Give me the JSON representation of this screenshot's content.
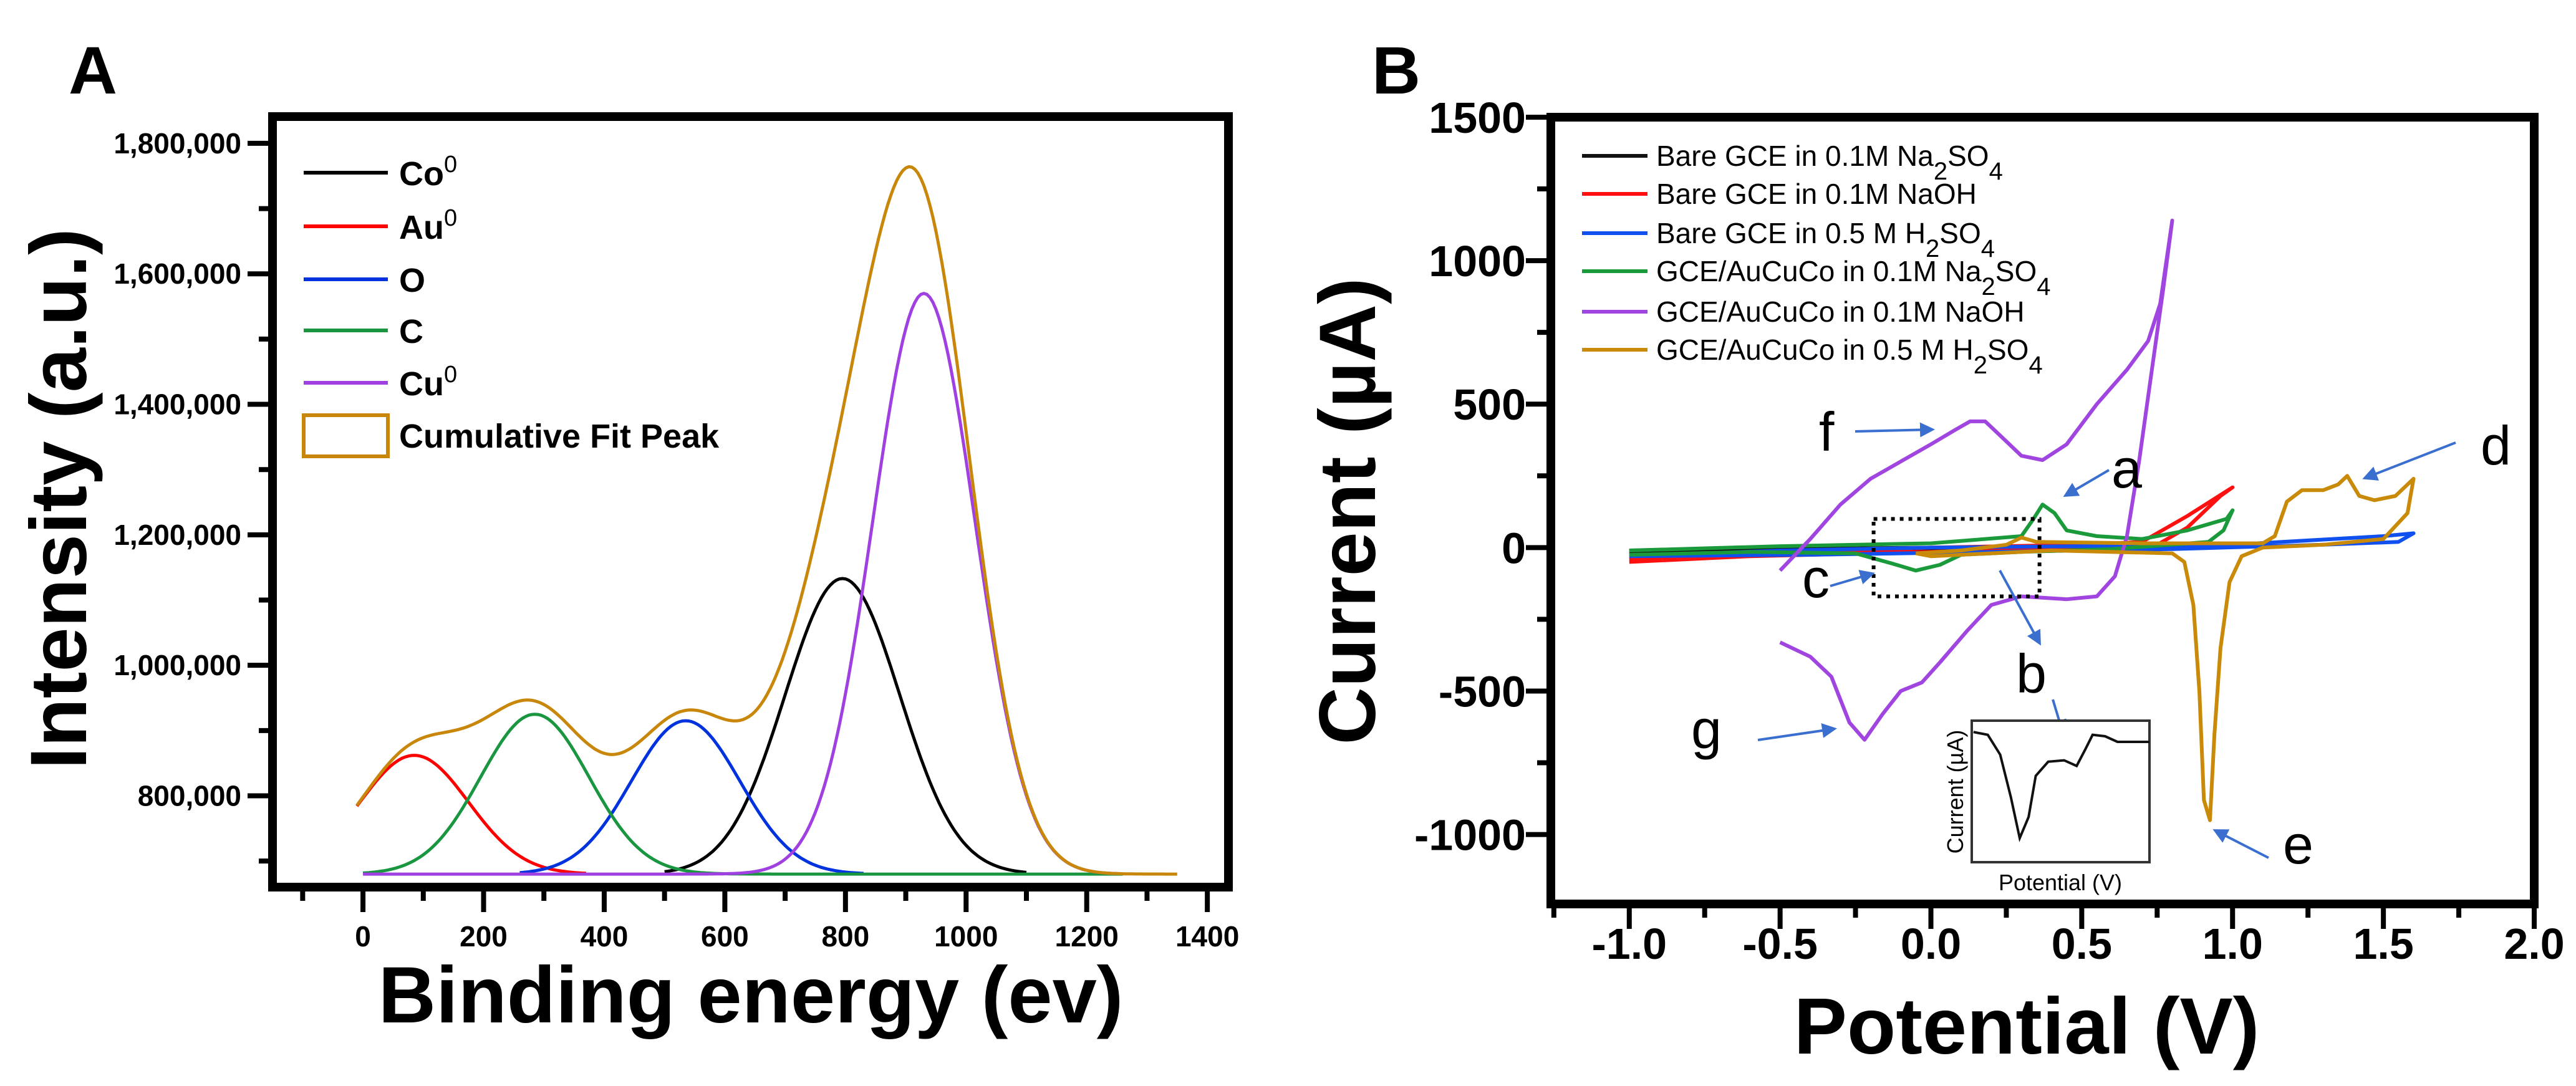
{
  "chart_data": [
    {
      "panel": "A",
      "type": "line",
      "xlabel": "Binding energy (ev)",
      "ylabel": "Intensity (a.u.)",
      "xlim": [
        -150,
        1435
      ],
      "ylim": [
        660000,
        1841000
      ],
      "xticks": [
        0,
        200,
        400,
        600,
        800,
        1000,
        1200,
        1400
      ],
      "xtick_labels": [
        "0",
        "200",
        "400",
        "600",
        "800",
        "1000",
        "1200",
        "1400"
      ],
      "yticks": [
        800000,
        1000000,
        1200000,
        1400000,
        1600000,
        1800000
      ],
      "ytick_labels": [
        "800,000",
        "1,000,000",
        "1,200,000",
        "1,400,000",
        "1,600,000",
        "1,800,000"
      ],
      "grid": false,
      "legend_position": "top-left",
      "baseline": 680000,
      "series": [
        {
          "name": "Co",
          "sup": "0",
          "color": "#000000",
          "center": 795,
          "peak": 1133000,
          "sigma": 95,
          "range": [
            500,
            1100
          ]
        },
        {
          "name": "Au",
          "sup": "0",
          "color": "#ff0000",
          "center": 85,
          "peak": 862000,
          "sigma": 90,
          "range": [
            -10,
            370
          ]
        },
        {
          "name": "O",
          "sup": "",
          "color": "#0033dd",
          "center": 535,
          "peak": 915000,
          "sigma": 90,
          "range": [
            260,
            830
          ]
        },
        {
          "name": "C",
          "sup": "",
          "color": "#1a9641",
          "center": 285,
          "peak": 925000,
          "sigma": 90,
          "range": [
            0,
            1260
          ]
        },
        {
          "name": "Cu",
          "sup": "0",
          "color": "#a040e0",
          "center": 930,
          "peak": 1570000,
          "sigma": 85,
          "range": [
            0,
            1250
          ]
        },
        {
          "name": "Cumulative Fit Peak",
          "sup": "",
          "color": "#c8870a",
          "cumulative": true,
          "range": [
            -10,
            1350
          ]
        }
      ]
    },
    {
      "panel": "B",
      "type": "line",
      "xlabel": "Potential (V)",
      "ylabel": "Current (µA)",
      "xlim": [
        -1.26,
        2.0
      ],
      "ylim": [
        -1242,
        1500
      ],
      "xticks": [
        -1.0,
        -0.5,
        0.0,
        0.5,
        1.0,
        1.5,
        2.0
      ],
      "xtick_labels": [
        "-1.0",
        "-0.5",
        "0.0",
        "0.5",
        "1.0",
        "1.5",
        "2.0"
      ],
      "yticks": [
        -1000,
        -500,
        0,
        500,
        1000,
        1500
      ],
      "ytick_labels": [
        "-1000",
        "-500",
        "0",
        "500",
        "1000",
        "1500"
      ],
      "grid": false,
      "legend_position": "top-left",
      "series": [
        {
          "name": "Bare GCE in 0.1M Na2SO4",
          "color": "#111111",
          "points": [
            [
              -1.0,
              -10
            ],
            [
              -0.5,
              -5
            ],
            [
              0.0,
              0
            ],
            [
              0.5,
              5
            ],
            [
              1.0,
              10
            ],
            [
              0.9,
              0
            ],
            [
              0.4,
              -5
            ],
            [
              -0.2,
              -10
            ],
            [
              -1.0,
              -15
            ]
          ]
        },
        {
          "name": "Bare GCE in 0.1M NaOH",
          "color": "#ff1010",
          "points": [
            [
              -1.0,
              -40
            ],
            [
              -0.5,
              -25
            ],
            [
              0.0,
              0
            ],
            [
              0.5,
              10
            ],
            [
              0.7,
              20
            ],
            [
              0.85,
              110
            ],
            [
              1.0,
              210
            ],
            [
              0.96,
              180
            ],
            [
              0.85,
              70
            ],
            [
              0.75,
              10
            ],
            [
              0.4,
              0
            ],
            [
              0.0,
              -15
            ],
            [
              -0.6,
              -30
            ],
            [
              -1.0,
              -50
            ]
          ]
        },
        {
          "name": "Bare GCE in 0.5 M H2SO4",
          "color": "#1050ee",
          "points": [
            [
              -1.0,
              -30
            ],
            [
              -0.5,
              -10
            ],
            [
              0.0,
              0
            ],
            [
              0.5,
              5
            ],
            [
              1.0,
              10
            ],
            [
              1.5,
              40
            ],
            [
              1.6,
              50
            ],
            [
              1.55,
              20
            ],
            [
              1.3,
              10
            ],
            [
              0.8,
              -5
            ],
            [
              0.2,
              -15
            ],
            [
              -0.4,
              -25
            ],
            [
              -1.0,
              -30
            ]
          ]
        },
        {
          "name": "GCE/AuCuCo in 0.1M Na2SO4",
          "color": "#1a9a3a",
          "points": [
            [
              -1.0,
              -10
            ],
            [
              -0.5,
              5
            ],
            [
              0.0,
              15
            ],
            [
              0.3,
              40
            ],
            [
              0.34,
              100
            ],
            [
              0.37,
              150
            ],
            [
              0.41,
              120
            ],
            [
              0.45,
              60
            ],
            [
              0.55,
              40
            ],
            [
              0.7,
              30
            ],
            [
              0.85,
              60
            ],
            [
              0.98,
              100
            ],
            [
              1.0,
              130
            ],
            [
              0.97,
              60
            ],
            [
              0.92,
              20
            ],
            [
              0.6,
              -5
            ],
            [
              0.3,
              -15
            ],
            [
              0.1,
              -25
            ],
            [
              0.03,
              -60
            ],
            [
              -0.05,
              -80
            ],
            [
              -0.13,
              -55
            ],
            [
              -0.25,
              -20
            ],
            [
              -0.6,
              -15
            ],
            [
              -1.0,
              -25
            ]
          ]
        },
        {
          "name": "GCE/AuCuCo in 0.1M NaOH",
          "color": "#a045e0",
          "points": [
            [
              -0.5,
              -80
            ],
            [
              -0.4,
              30
            ],
            [
              -0.3,
              150
            ],
            [
              -0.2,
              240
            ],
            [
              -0.1,
              300
            ],
            [
              0.0,
              360
            ],
            [
              0.08,
              410
            ],
            [
              0.13,
              440
            ],
            [
              0.18,
              440
            ],
            [
              0.25,
              370
            ],
            [
              0.3,
              320
            ],
            [
              0.37,
              305
            ],
            [
              0.45,
              360
            ],
            [
              0.55,
              500
            ],
            [
              0.65,
              620
            ],
            [
              0.72,
              720
            ],
            [
              0.76,
              850
            ],
            [
              0.8,
              1140
            ],
            [
              0.77,
              900
            ],
            [
              0.73,
              600
            ],
            [
              0.69,
              300
            ],
            [
              0.65,
              40
            ],
            [
              0.61,
              -100
            ],
            [
              0.55,
              -170
            ],
            [
              0.45,
              -180
            ],
            [
              0.3,
              -170
            ],
            [
              0.2,
              -200
            ],
            [
              0.12,
              -290
            ],
            [
              0.03,
              -400
            ],
            [
              -0.03,
              -470
            ],
            [
              -0.1,
              -500
            ],
            [
              -0.16,
              -580
            ],
            [
              -0.22,
              -670
            ],
            [
              -0.27,
              -610
            ],
            [
              -0.33,
              -450
            ],
            [
              -0.4,
              -380
            ],
            [
              -0.5,
              -330
            ]
          ]
        },
        {
          "name": "GCE/AuCuCo in 0.5 M H2SO4",
          "color": "#c98a0a",
          "points": [
            [
              -0.05,
              -20
            ],
            [
              0.1,
              -10
            ],
            [
              0.25,
              10
            ],
            [
              0.3,
              35
            ],
            [
              0.35,
              20
            ],
            [
              0.7,
              15
            ],
            [
              1.1,
              15
            ],
            [
              1.14,
              40
            ],
            [
              1.18,
              160
            ],
            [
              1.23,
              200
            ],
            [
              1.3,
              200
            ],
            [
              1.35,
              220
            ],
            [
              1.38,
              250
            ],
            [
              1.42,
              180
            ],
            [
              1.47,
              165
            ],
            [
              1.54,
              180
            ],
            [
              1.6,
              240
            ],
            [
              1.58,
              120
            ],
            [
              1.5,
              30
            ],
            [
              1.3,
              10
            ],
            [
              1.1,
              0
            ],
            [
              1.03,
              -30
            ],
            [
              0.99,
              -120
            ],
            [
              0.96,
              -350
            ],
            [
              0.94,
              -650
            ],
            [
              0.925,
              -950
            ],
            [
              0.905,
              -880
            ],
            [
              0.89,
              -500
            ],
            [
              0.87,
              -200
            ],
            [
              0.84,
              -50
            ],
            [
              0.8,
              -20
            ],
            [
              0.4,
              -10
            ],
            [
              0.0,
              -30
            ],
            [
              -0.05,
              -20
            ]
          ]
        }
      ],
      "annotations": [
        "a",
        "b",
        "c",
        "d",
        "e",
        "f",
        "g"
      ],
      "inset": {
        "xlabel": "Potential (V)",
        "ylabel": "Current (µA)",
        "shape": [
          [
            0.01,
            0.08
          ],
          [
            0.09,
            0.1
          ],
          [
            0.16,
            0.24
          ],
          [
            0.22,
            0.54
          ],
          [
            0.27,
            0.83
          ],
          [
            0.32,
            0.68
          ],
          [
            0.36,
            0.39
          ],
          [
            0.43,
            0.29
          ],
          [
            0.52,
            0.28
          ],
          [
            0.59,
            0.32
          ],
          [
            0.64,
            0.2
          ],
          [
            0.68,
            0.1
          ],
          [
            0.75,
            0.11
          ],
          [
            0.82,
            0.15
          ],
          [
            1.0,
            0.15
          ]
        ]
      }
    }
  ],
  "panels": {
    "a": "A",
    "b": "B"
  }
}
